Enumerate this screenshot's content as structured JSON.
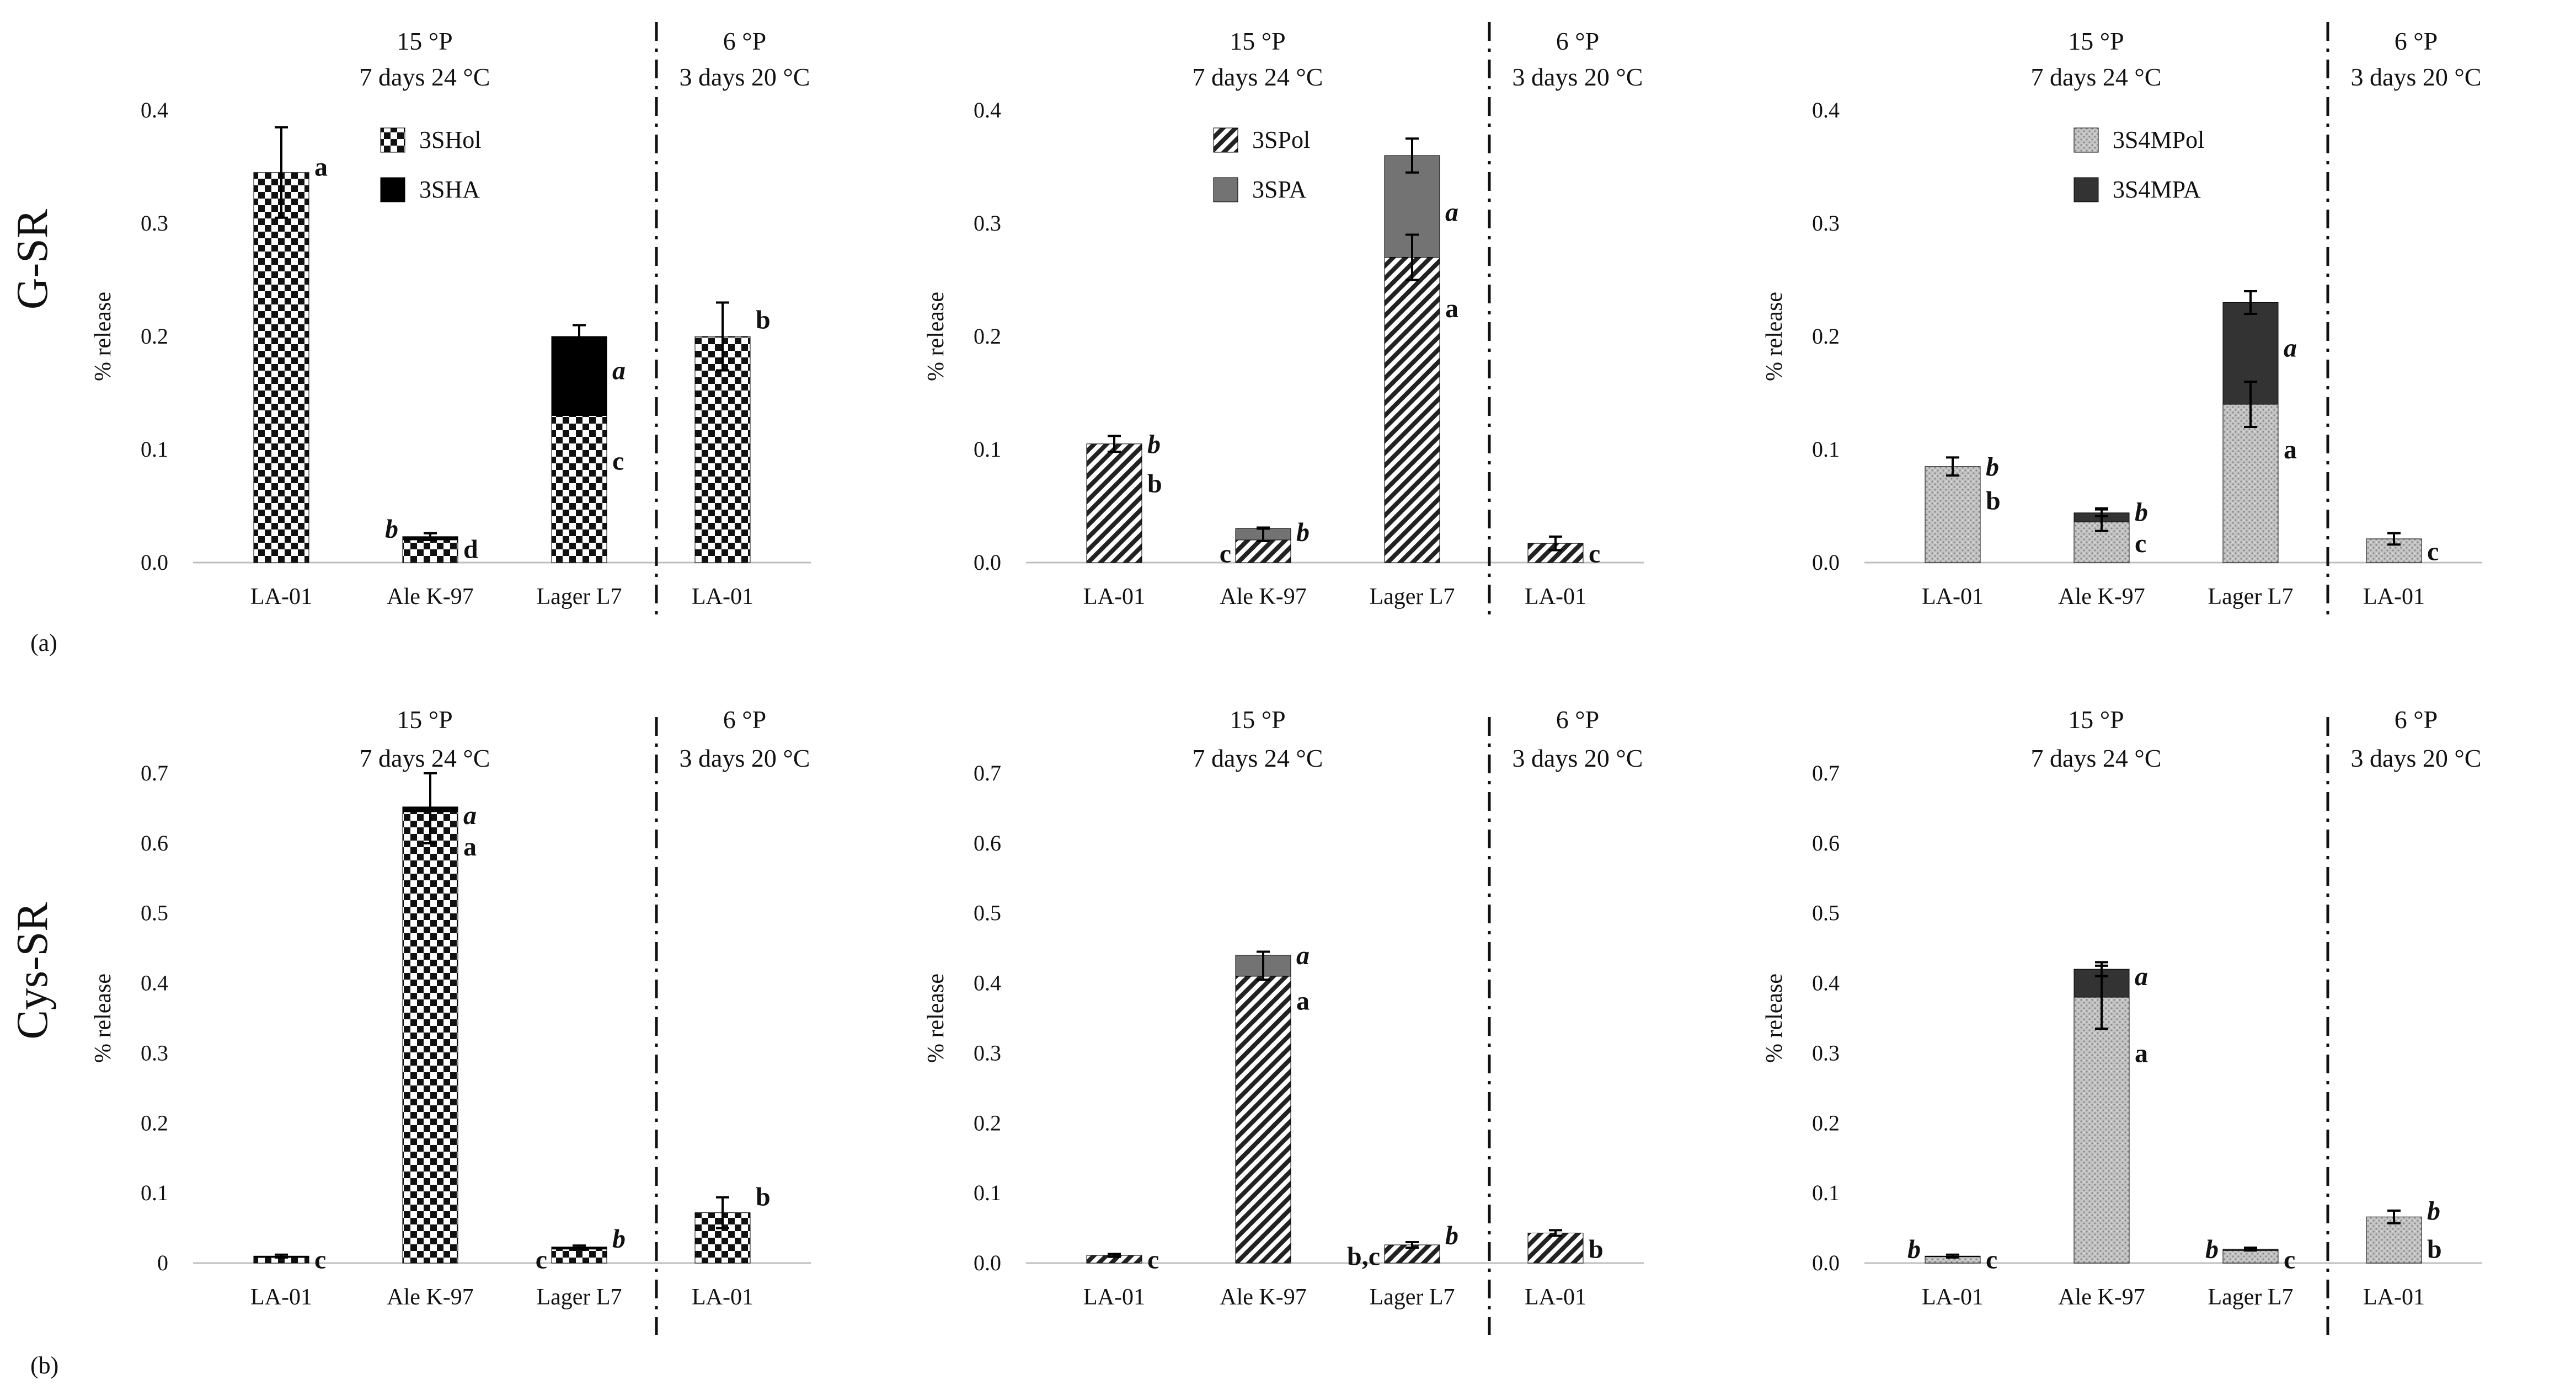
{
  "figure": {
    "row_labels": [
      "G-SR",
      "Cys-SR"
    ],
    "panel_labels": [
      "(a)",
      "(b)"
    ]
  },
  "colors": {
    "axis": "#bfbfbf",
    "divider": "#111111",
    "ink": "#111111"
  },
  "chart_data": [
    {
      "type": "bar",
      "stacked": true,
      "row": 0,
      "col": 0,
      "ylabel": "% release",
      "yticks": [
        "0.0",
        "0.1",
        "0.2",
        "0.3",
        "0.4"
      ],
      "ylim": [
        0,
        0.4
      ],
      "groups": [
        {
          "line1": "15 °P",
          "line2": "7 days 24 °C"
        },
        {
          "line1": "6 °P",
          "line2": "3 days 20 °C"
        }
      ],
      "categories": [
        "LA-01",
        "Ale K-97",
        "Lager L7",
        "LA-01"
      ],
      "series": [
        {
          "name": "3SHol",
          "pattern": "checker",
          "values": [
            0.345,
            0.02,
            0.13,
            0.2
          ]
        },
        {
          "name": "3SHA",
          "pattern": "solid-black",
          "values": [
            0,
            0.003,
            0.07,
            0
          ]
        }
      ],
      "errors": [
        {
          "cat": 0,
          "value": 0.345,
          "err": 0.04
        },
        {
          "cat": 1,
          "value": 0.023,
          "err": 0.003
        },
        {
          "cat": 2,
          "value": 0.2,
          "err": 0.01
        },
        {
          "cat": 3,
          "value": 0.2,
          "err": 0.03
        }
      ],
      "letters": [
        {
          "cat": 0,
          "value": 0.35,
          "text": "a",
          "italic": false
        },
        {
          "cat": 1,
          "value": 0.03,
          "text": "b",
          "italic": true,
          "side": "left"
        },
        {
          "cat": 1,
          "value": 0.012,
          "text": "d",
          "italic": false
        },
        {
          "cat": 2,
          "value": 0.17,
          "text": "a",
          "italic": true
        },
        {
          "cat": 2,
          "value": 0.09,
          "text": "c",
          "italic": false
        },
        {
          "cat": 3,
          "value": 0.215,
          "text": "b",
          "italic": false
        }
      ],
      "legend": [
        {
          "label": "3SHol",
          "pattern": "checker"
        },
        {
          "label": "3SHA",
          "pattern": "solid-black"
        }
      ]
    },
    {
      "type": "bar",
      "stacked": true,
      "row": 0,
      "col": 1,
      "ylabel": "% release",
      "yticks": [
        "0.0",
        "0.1",
        "0.2",
        "0.3",
        "0.4"
      ],
      "ylim": [
        0,
        0.4
      ],
      "groups": [
        {
          "line1": "15 °P",
          "line2": "7 days 24 °C"
        },
        {
          "line1": "6 °P",
          "line2": "3 days 20 °C"
        }
      ],
      "categories": [
        "LA-01",
        "Ale K-97",
        "Lager L7",
        "LA-01"
      ],
      "series": [
        {
          "name": "3SPol",
          "pattern": "hatch",
          "values": [
            0.105,
            0.02,
            0.27,
            0.017
          ]
        },
        {
          "name": "3SPA",
          "pattern": "solid-gray",
          "values": [
            0,
            0.01,
            0.09,
            0
          ]
        }
      ],
      "errors": [
        {
          "cat": 0,
          "value": 0.105,
          "err": 0.007
        },
        {
          "cat": 1,
          "value": 0.025,
          "err": 0.006
        },
        {
          "cat": 1,
          "value": 0.03,
          "err": 0.0
        },
        {
          "cat": 2,
          "value": 0.27,
          "err": 0.02
        },
        {
          "cat": 2,
          "value": 0.36,
          "err": 0.015
        },
        {
          "cat": 3,
          "value": 0.017,
          "err": 0.006
        }
      ],
      "letters": [
        {
          "cat": 0,
          "value": 0.105,
          "text": "b",
          "italic": true
        },
        {
          "cat": 0,
          "value": 0.07,
          "text": "b",
          "italic": false
        },
        {
          "cat": 1,
          "value": 0.008,
          "text": "c",
          "italic": false,
          "side": "left"
        },
        {
          "cat": 1,
          "value": 0.027,
          "text": "b",
          "italic": true
        },
        {
          "cat": 2,
          "value": 0.31,
          "text": "a",
          "italic": true
        },
        {
          "cat": 2,
          "value": 0.225,
          "text": "a",
          "italic": false
        },
        {
          "cat": 3,
          "value": 0.008,
          "text": "c",
          "italic": false
        }
      ],
      "legend": [
        {
          "label": "3SPol",
          "pattern": "hatch"
        },
        {
          "label": "3SPA",
          "pattern": "solid-gray"
        }
      ]
    },
    {
      "type": "bar",
      "stacked": true,
      "row": 0,
      "col": 2,
      "ylabel": "% release",
      "yticks": [
        "0.0",
        "0.1",
        "0.2",
        "0.3",
        "0.4"
      ],
      "ylim": [
        0,
        0.4
      ],
      "groups": [
        {
          "line1": "15 °P",
          "line2": "7 days 24 °C"
        },
        {
          "line1": "6 °P",
          "line2": "3 days 20 °C"
        }
      ],
      "categories": [
        "LA-01",
        "Ale K-97",
        "Lager L7",
        "LA-01"
      ],
      "series": [
        {
          "name": "3S4MPol",
          "pattern": "dots",
          "values": [
            0.085,
            0.036,
            0.14,
            0.021
          ]
        },
        {
          "name": "3S4MPA",
          "pattern": "solid-dark",
          "values": [
            0,
            0.008,
            0.09,
            0
          ]
        }
      ],
      "errors": [
        {
          "cat": 0,
          "value": 0.085,
          "err": 0.008
        },
        {
          "cat": 1,
          "value": 0.038,
          "err": 0.01
        },
        {
          "cat": 1,
          "value": 0.044,
          "err": 0.003
        },
        {
          "cat": 2,
          "value": 0.14,
          "err": 0.02
        },
        {
          "cat": 2,
          "value": 0.23,
          "err": 0.01
        },
        {
          "cat": 3,
          "value": 0.021,
          "err": 0.005
        }
      ],
      "letters": [
        {
          "cat": 0,
          "value": 0.085,
          "text": "b",
          "italic": true
        },
        {
          "cat": 0,
          "value": 0.055,
          "text": "b",
          "italic": false
        },
        {
          "cat": 1,
          "value": 0.045,
          "text": "b",
          "italic": true
        },
        {
          "cat": 1,
          "value": 0.017,
          "text": "c",
          "italic": false
        },
        {
          "cat": 2,
          "value": 0.19,
          "text": "a",
          "italic": true
        },
        {
          "cat": 2,
          "value": 0.1,
          "text": "a",
          "italic": false
        },
        {
          "cat": 3,
          "value": 0.01,
          "text": "c",
          "italic": false
        }
      ],
      "legend": [
        {
          "label": "3S4MPol",
          "pattern": "dots"
        },
        {
          "label": "3S4MPA",
          "pattern": "solid-dark"
        }
      ]
    },
    {
      "type": "bar",
      "stacked": true,
      "row": 1,
      "col": 0,
      "ylabel": "% release",
      "yticks": [
        "0",
        "0.1",
        "0.2",
        "0.3",
        "0.4",
        "0.5",
        "0.6",
        "0.7"
      ],
      "ylim": [
        0,
        0.7
      ],
      "groups": [
        {
          "line1": "15 °P",
          "line2": "7 days 24 °C"
        },
        {
          "line1": "6 °P",
          "line2": "3 days 20 °C"
        }
      ],
      "categories": [
        "LA-01",
        "Ale K-97",
        "Lager L7",
        "LA-01"
      ],
      "series": [
        {
          "name": "3SHol",
          "pattern": "checker",
          "values": [
            0.008,
            0.645,
            0.02,
            0.072
          ]
        },
        {
          "name": "3SHA",
          "pattern": "solid-black",
          "values": [
            0.002,
            0.007,
            0.003,
            0
          ]
        }
      ],
      "errors": [
        {
          "cat": 0,
          "value": 0.01,
          "err": 0.002
        },
        {
          "cat": 1,
          "value": 0.65,
          "err": 0.05
        },
        {
          "cat": 2,
          "value": 0.022,
          "err": 0.003
        },
        {
          "cat": 3,
          "value": 0.072,
          "err": 0.022
        }
      ],
      "letters": [
        {
          "cat": 0,
          "value": 0.005,
          "text": "c",
          "italic": false
        },
        {
          "cat": 1,
          "value": 0.64,
          "text": "a",
          "italic": true
        },
        {
          "cat": 1,
          "value": 0.595,
          "text": "a",
          "italic": false
        },
        {
          "cat": 2,
          "value": 0.005,
          "text": "c",
          "italic": false,
          "side": "left"
        },
        {
          "cat": 2,
          "value": 0.035,
          "text": "b",
          "italic": true
        },
        {
          "cat": 3,
          "value": 0.095,
          "text": "b",
          "italic": false
        }
      ],
      "legend": []
    },
    {
      "type": "bar",
      "stacked": true,
      "row": 1,
      "col": 1,
      "ylabel": "% release",
      "yticks": [
        "0.0",
        "0.1",
        "0.2",
        "0.3",
        "0.4",
        "0.5",
        "0.6",
        "0.7"
      ],
      "ylim": [
        0,
        0.7
      ],
      "groups": [
        {
          "line1": "15 °P",
          "line2": "7 days 24 °C"
        },
        {
          "line1": "6 °P",
          "line2": "3 days 20 °C"
        }
      ],
      "categories": [
        "LA-01",
        "Ale K-97",
        "Lager L7",
        "LA-01"
      ],
      "series": [
        {
          "name": "3SPol",
          "pattern": "hatch",
          "values": [
            0.011,
            0.41,
            0.026,
            0.043
          ]
        },
        {
          "name": "3SPA",
          "pattern": "solid-gray",
          "values": [
            0,
            0.03,
            0,
            0
          ]
        }
      ],
      "errors": [
        {
          "cat": 0,
          "value": 0.011,
          "err": 0.002
        },
        {
          "cat": 1,
          "value": 0.425,
          "err": 0.02
        },
        {
          "cat": 2,
          "value": 0.026,
          "err": 0.004
        },
        {
          "cat": 3,
          "value": 0.043,
          "err": 0.004
        }
      ],
      "letters": [
        {
          "cat": 0,
          "value": 0.005,
          "text": "c",
          "italic": false
        },
        {
          "cat": 1,
          "value": 0.44,
          "text": "a",
          "italic": true
        },
        {
          "cat": 1,
          "value": 0.375,
          "text": "a",
          "italic": false
        },
        {
          "cat": 2,
          "value": 0.01,
          "text": "b,c",
          "italic": false,
          "side": "left"
        },
        {
          "cat": 2,
          "value": 0.04,
          "text": "b",
          "italic": true
        },
        {
          "cat": 3,
          "value": 0.02,
          "text": "b",
          "italic": false
        }
      ],
      "legend": []
    },
    {
      "type": "bar",
      "stacked": true,
      "row": 1,
      "col": 2,
      "ylabel": "% release",
      "yticks": [
        "0.0",
        "0.1",
        "0.2",
        "0.3",
        "0.4",
        "0.5",
        "0.6",
        "0.7"
      ],
      "ylim": [
        0,
        0.7
      ],
      "groups": [
        {
          "line1": "15 °P",
          "line2": "7 days 24 °C"
        },
        {
          "line1": "6 °P",
          "line2": "3 days 20 °C"
        }
      ],
      "categories": [
        "LA-01",
        "Ale K-97",
        "Lager L7",
        "LA-01"
      ],
      "series": [
        {
          "name": "3S4MPol",
          "pattern": "dots",
          "values": [
            0.009,
            0.38,
            0.018,
            0.066
          ]
        },
        {
          "name": "3S4MPA",
          "pattern": "solid-dark",
          "values": [
            0.001,
            0.04,
            0.002,
            0
          ]
        }
      ],
      "errors": [
        {
          "cat": 0,
          "value": 0.01,
          "err": 0.002
        },
        {
          "cat": 1,
          "value": 0.38,
          "err": 0.045
        },
        {
          "cat": 1,
          "value": 0.42,
          "err": 0.01
        },
        {
          "cat": 2,
          "value": 0.02,
          "err": 0.002
        },
        {
          "cat": 3,
          "value": 0.066,
          "err": 0.009
        }
      ],
      "letters": [
        {
          "cat": 0,
          "value": 0.02,
          "text": "b",
          "italic": true,
          "side": "left"
        },
        {
          "cat": 0,
          "value": 0.005,
          "text": "c",
          "italic": false
        },
        {
          "cat": 1,
          "value": 0.41,
          "text": "a",
          "italic": true
        },
        {
          "cat": 1,
          "value": 0.3,
          "text": "a",
          "italic": false
        },
        {
          "cat": 2,
          "value": 0.02,
          "text": "b",
          "italic": true,
          "side": "left"
        },
        {
          "cat": 2,
          "value": 0.005,
          "text": "c",
          "italic": false
        },
        {
          "cat": 3,
          "value": 0.075,
          "text": "b",
          "italic": true
        },
        {
          "cat": 3,
          "value": 0.02,
          "text": "b",
          "italic": false
        }
      ],
      "legend": []
    }
  ]
}
